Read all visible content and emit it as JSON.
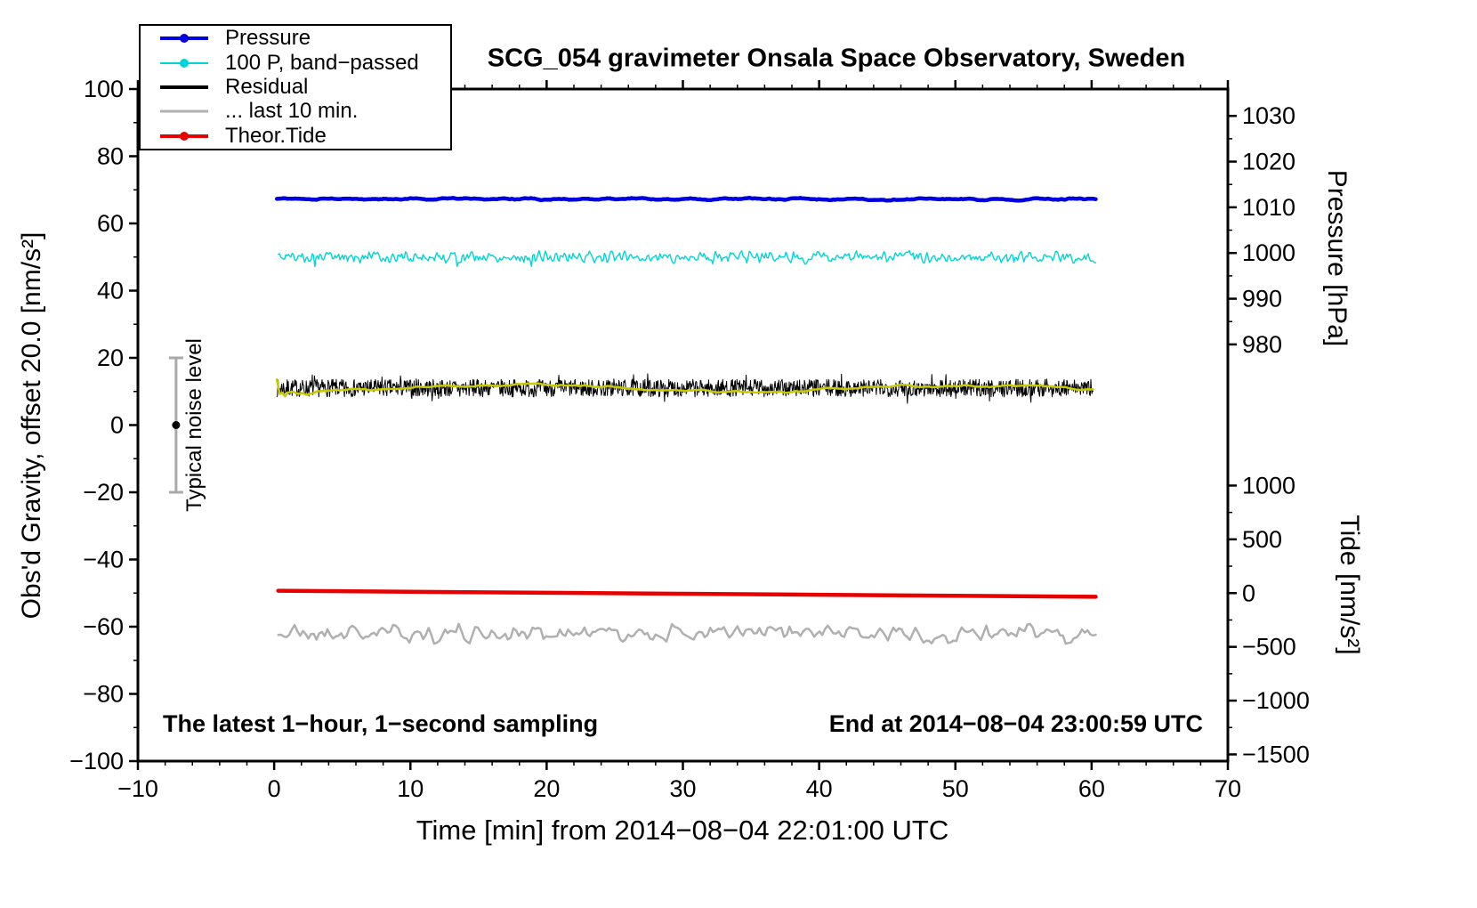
{
  "chart_data": {
    "type": "line",
    "title": "SCG_054 gravimeter Onsala Space Observatory, Sweden",
    "xlabel": "Time [min] from 2014−08−04 22:01:00 UTC",
    "ylabel_left": "Obs'd Gravity, offset 20.0 [nm/s²]",
    "ylabel_pressure": "Pressure [hPa]",
    "ylabel_tide": "Tide [nm/s²]",
    "xlim": [
      -10,
      70
    ],
    "ylim": [
      -100,
      100
    ],
    "x_ticks": [
      -10,
      0,
      10,
      20,
      30,
      40,
      50,
      60,
      70
    ],
    "x_minor_step": 2,
    "y_ticks": [
      -100,
      -80,
      -60,
      -40,
      -20,
      0,
      20,
      40,
      60,
      80,
      100
    ],
    "y_minor_step": 10,
    "grid": "off",
    "pressure_axis": {
      "ticks": [
        "1030",
        "1020",
        "1010",
        "1000",
        "990",
        "980"
      ],
      "gravity_positions": [
        92,
        78.4,
        64.8,
        51.2,
        37.6,
        24
      ]
    },
    "tide_axis": {
      "ticks": [
        "1000",
        "500",
        "0",
        "−500",
        "−1000",
        "−1500"
      ],
      "gravity_positions": [
        -18,
        -34,
        -50,
        -66,
        -82,
        -98
      ]
    },
    "noise_marker": {
      "x": -7.2,
      "y_min": -20,
      "y_max": 20,
      "dot_y": 0,
      "label": "Typical noise level"
    },
    "annotations": {
      "sampling": "The latest 1−hour, 1−second sampling",
      "end_time": "End at 2014−08−04 23:00:59 UTC"
    },
    "legend": {
      "position": "top-left",
      "items": [
        {
          "label": "Pressure",
          "color": "#0000e0",
          "dot": true,
          "lw": 4
        },
        {
          "label": "100 P, band−passed",
          "color": "#00d5d5",
          "dot": true,
          "lw": 2
        },
        {
          "label": "Residual",
          "color": "#000000",
          "dot": false,
          "lw": 4
        },
        {
          "label": "... last 10 min.",
          "color": "#b0b0b0",
          "dot": false,
          "lw": 3
        },
        {
          "label": "Theor.Tide",
          "color": "#e60000",
          "dot": true,
          "lw": 4
        }
      ]
    },
    "series": [
      {
        "name": "pressure",
        "color": "#0000e0",
        "width": 4.5,
        "mode": "noise",
        "x_start": 0.2,
        "x_end": 60.3,
        "n": 500,
        "mean": 67.3,
        "amp": 0.3,
        "smooth": 10,
        "seed": 11
      },
      {
        "name": "band-passed-pressure",
        "color": "#00d5d5",
        "width": 1.4,
        "mode": "noise",
        "x_start": 0.3,
        "x_end": 60.3,
        "n": 650,
        "mean": 50,
        "amp": 1.5,
        "smooth": 2,
        "seed": 5,
        "spike_prob": 0.025,
        "spike_mult": 2.0
      },
      {
        "name": "residual",
        "color": "#000000",
        "width": 1,
        "mode": "noise",
        "x_start": 0.2,
        "x_end": 60.1,
        "n": 1500,
        "mean": 11,
        "amp": 2.6,
        "smooth": 1,
        "seed": 7,
        "spike_prob": 0.04,
        "spike_mult": 1.8
      },
      {
        "name": "residual-smooth",
        "color": "#c9c900",
        "width": 2.5,
        "mode": "noise",
        "x_start": 0.2,
        "x_end": 60.1,
        "n": 300,
        "mean": 10.8,
        "amp": 1.0,
        "smooth": 40,
        "seed": 3
      },
      {
        "name": "theoretical-tide",
        "color": "#e60000",
        "width": 4.5,
        "mode": "points",
        "points": [
          [
            0.3,
            -49.3
          ],
          [
            10,
            -49.6
          ],
          [
            20,
            -49.9
          ],
          [
            30,
            -50.2
          ],
          [
            40,
            -50.5
          ],
          [
            50,
            -50.8
          ],
          [
            60.3,
            -51.1
          ]
        ]
      },
      {
        "name": "residual-last-10min",
        "color": "#b0b0b0",
        "width": 2.5,
        "mode": "noise",
        "x_start": 0.3,
        "x_end": 60.3,
        "n": 300,
        "mean": -62,
        "amp": 2.3,
        "smooth": 2,
        "seed": 21,
        "spike_prob": 0.02,
        "spike_mult": 1.6
      }
    ]
  }
}
